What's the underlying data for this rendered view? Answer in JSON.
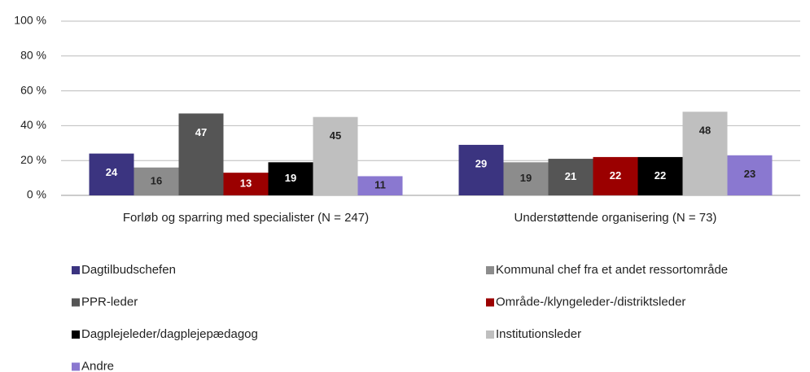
{
  "chart_data": {
    "type": "bar",
    "categories": [
      "Forløb og sparring med specialister (N = 247)",
      "Understøttende organisering (N = 73)"
    ],
    "series": [
      {
        "name": "Dagtilbudschefen",
        "color": "#3b3480",
        "values": [
          24,
          29
        ]
      },
      {
        "name": "Kommunal chef fra et andet ressortområde",
        "color": "#8c8c8c",
        "values": [
          16,
          19
        ]
      },
      {
        "name": "PPR-leder",
        "color": "#555555",
        "values": [
          47,
          21
        ]
      },
      {
        "name": "Område-/klyngeleder-/distriktsleder",
        "color": "#9b0000",
        "values": [
          13,
          22
        ]
      },
      {
        "name": "Dagplejeleder/dagplejepædagog",
        "color": "#000000",
        "values": [
          19,
          22
        ]
      },
      {
        "name": "Institutionsleder",
        "color": "#bfbfbf",
        "values": [
          45,
          48
        ]
      },
      {
        "name": "Andre",
        "color": "#8a78d0",
        "values": [
          11,
          23
        ]
      }
    ],
    "ylim": [
      0,
      100
    ],
    "yticks": [
      {
        "value": 0,
        "label": "0 %"
      },
      {
        "value": 20,
        "label": "20 %"
      },
      {
        "value": 40,
        "label": "40 %"
      },
      {
        "value": 60,
        "label": "60 %"
      },
      {
        "value": 80,
        "label": "80 %"
      },
      {
        "value": 100,
        "label": "100 %"
      }
    ],
    "grid": true,
    "legend": "bottom"
  }
}
